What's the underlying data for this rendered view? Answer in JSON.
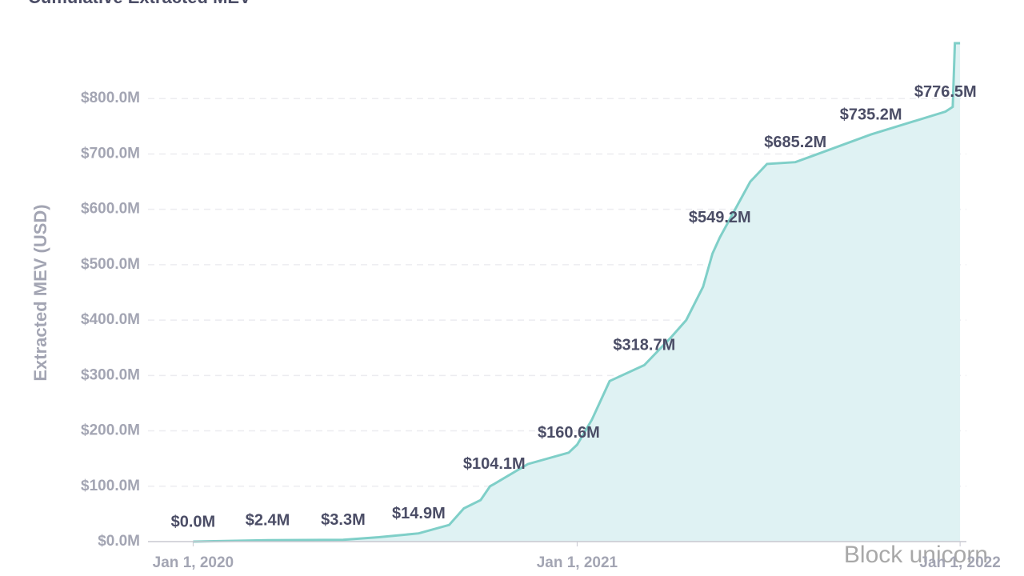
{
  "chart_data": {
    "type": "area",
    "title": "Cumulative Extracted MEV",
    "y_label": "Extracted MEV (USD)",
    "watermark": "Block unicorn",
    "xlim": [
      "2019-11-19",
      "2022-01-07"
    ],
    "xticks": [
      {
        "value": "2020-01-01",
        "label": "Jan 1, 2020"
      },
      {
        "value": "2021-01-01",
        "label": "Jan 1, 2021"
      },
      {
        "value": "2022-01-01",
        "label": "Jan 1, 2022"
      }
    ],
    "ylim": [
      0,
      900
    ],
    "yticks": [
      {
        "value": 0,
        "label": "$0.0M"
      },
      {
        "value": 100,
        "label": "$100.0M"
      },
      {
        "value": 200,
        "label": "$200.0M"
      },
      {
        "value": 300,
        "label": "$300.0M"
      },
      {
        "value": 400,
        "label": "$400.0M"
      },
      {
        "value": 500,
        "label": "$500.0M"
      },
      {
        "value": 600,
        "label": "$600.0M"
      },
      {
        "value": 700,
        "label": "$700.0M"
      },
      {
        "value": 800,
        "label": "$800.0M"
      }
    ],
    "grid": true,
    "series": [
      {
        "name": "Extracted MEV",
        "color": "#7fcfc8",
        "fill": "#dff2f3",
        "x": [
          "2020-01-01",
          "2020-03-12",
          "2020-05-23",
          "2020-06-26",
          "2020-08-03",
          "2020-09-01",
          "2020-09-15",
          "2020-10-01",
          "2020-10-10",
          "2020-10-14",
          "2020-11-15",
          "2020-12-24",
          "2021-01-01",
          "2021-01-15",
          "2021-02-01",
          "2021-03-06",
          "2021-04-01",
          "2021-04-15",
          "2021-05-01",
          "2021-05-10",
          "2021-05-17",
          "2021-06-15",
          "2021-07-01",
          "2021-07-28",
          "2021-10-08",
          "2021-12-18",
          "2021-12-25",
          "2021-12-27",
          "2022-01-01"
        ],
        "values": [
          0,
          2.4,
          3.3,
          8,
          14.9,
          30,
          60,
          75,
          100,
          104.1,
          140,
          160.6,
          175,
          220,
          290,
          318.7,
          370,
          400,
          460,
          520,
          549.2,
          650,
          682,
          685.2,
          735.2,
          776.5,
          785,
          900,
          900
        ],
        "value_labels": [
          "$0.0M",
          "$2.4M",
          "$3.3M",
          null,
          "$14.9M",
          null,
          null,
          null,
          null,
          "$104.1M",
          null,
          "$160.6M",
          null,
          null,
          null,
          "$318.7M",
          null,
          null,
          null,
          null,
          "$549.2M",
          null,
          null,
          "$685.2M",
          "$735.2M",
          "$776.5M",
          null,
          null,
          null
        ]
      }
    ]
  }
}
